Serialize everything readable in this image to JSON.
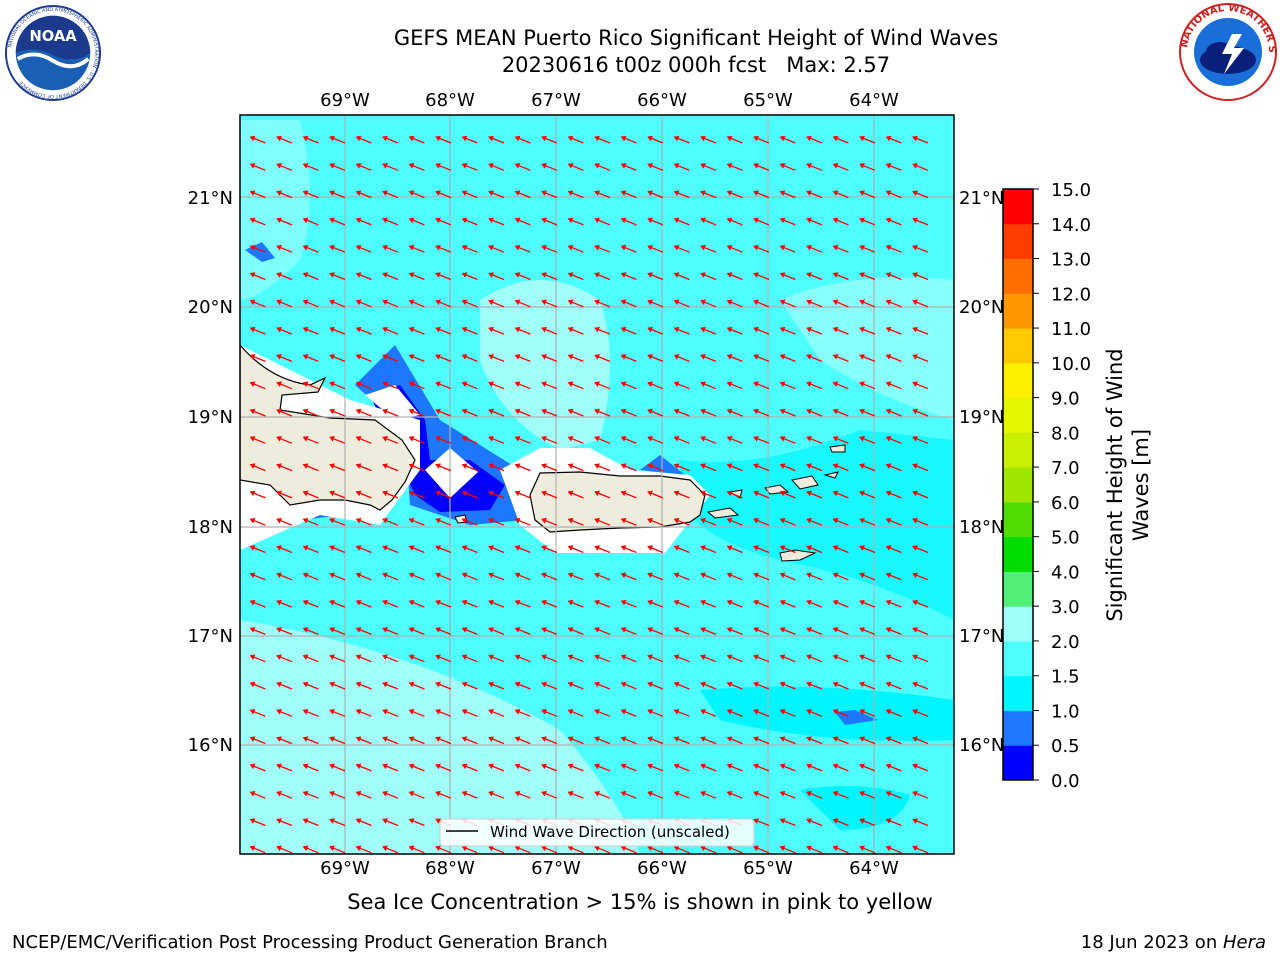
{
  "header": {
    "title_line1": "GEFS MEAN Puerto Rico Significant Height of Wind Waves",
    "title_line2": "20230616 t00z 000h fcst   Max: 2.57"
  },
  "logos": {
    "noaa_text": "NOAA",
    "noaa_ring_text": "NATIONAL OCEANIC AND ATMOSPHERIC ADMINISTRATION · U.S. DEPARTMENT OF COMMERCE",
    "nws_ring_text": "NATIONAL WEATHER SERVICE"
  },
  "map": {
    "lon_ticks": [
      "69°W",
      "68°W",
      "67°W",
      "66°W",
      "65°W",
      "64°W"
    ],
    "lat_ticks": [
      "21°N",
      "20°N",
      "19°N",
      "18°N",
      "17°N",
      "16°N"
    ],
    "legend_label": "Wind Wave Direction (unscaled)",
    "arrow_color": "#ff0000",
    "grid_color": "#b0b0b0",
    "land_color": "#eeecdd"
  },
  "colorbar": {
    "label": "Significant Height of Wind Waves [m]",
    "tick_labels": [
      "0.0",
      "0.5",
      "1.0",
      "1.5",
      "2.0",
      "3.0",
      "4.0",
      "5.0",
      "6.0",
      "7.0",
      "8.0",
      "9.0",
      "10.0",
      "11.0",
      "12.0",
      "13.0",
      "14.0",
      "15.0"
    ],
    "colors": [
      "#0000ff",
      "#1e78ff",
      "#00f5ff",
      "#4dffff",
      "#a0fff8",
      "#50f078",
      "#00dc00",
      "#50dc00",
      "#a0e600",
      "#c8f000",
      "#e6f500",
      "#fff000",
      "#ffc800",
      "#ff9600",
      "#ff6e00",
      "#ff3c00",
      "#ff0000"
    ]
  },
  "footer": {
    "sea_ice_note": "Sea Ice Concentration > 15% is shown in pink to yellow",
    "credit_left": "NCEP/EMC/Verification Post Processing Product Generation Branch",
    "credit_right_prefix": "18 Jun 2023 on ",
    "credit_right_host": "Hera"
  }
}
